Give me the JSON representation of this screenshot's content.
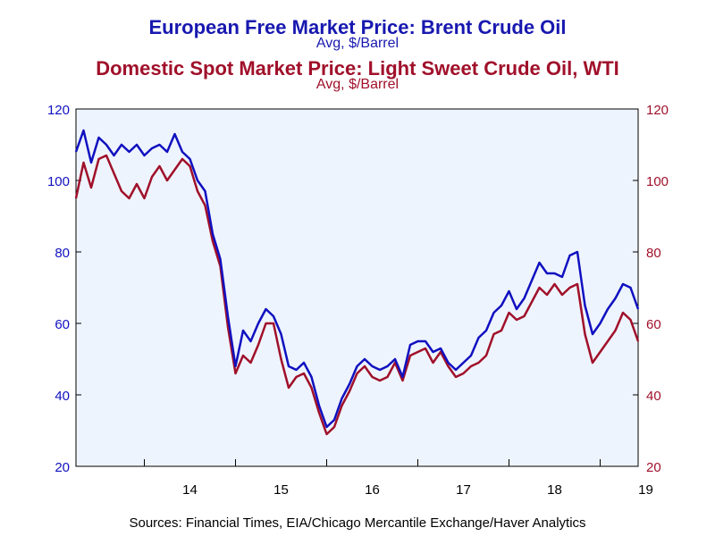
{
  "header": {
    "title_brent": "European Free Market Price: Brent Crude Oil",
    "subtitle_brent": "Avg, $/Barrel",
    "title_wti": "Domestic Spot Market Price: Light Sweet Crude Oil, WTI",
    "subtitle_wti": "Avg, $/Barrel"
  },
  "source": "Sources:  Financial Times, EIA/Chicago Mercantile Exchange/Haver Analytics",
  "colors": {
    "brent": "#1010c0",
    "wti": "#a0102a",
    "plot_bg": "#eef4fd"
  },
  "chart_data": {
    "type": "line",
    "x_ticks": [
      "14",
      "15",
      "16",
      "17",
      "18",
      "19"
    ],
    "y_ticks_left": [
      "20",
      "40",
      "60",
      "80",
      "100",
      "120"
    ],
    "y_ticks_right": [
      "20",
      "40",
      "60",
      "80",
      "100",
      "120"
    ],
    "ylim": [
      20,
      120
    ],
    "xlim": [
      "2013-04",
      "2019-06"
    ],
    "x": [
      "2013-04",
      "2013-05",
      "2013-06",
      "2013-07",
      "2013-08",
      "2013-09",
      "2013-10",
      "2013-11",
      "2013-12",
      "2014-01",
      "2014-02",
      "2014-03",
      "2014-04",
      "2014-05",
      "2014-06",
      "2014-07",
      "2014-08",
      "2014-09",
      "2014-10",
      "2014-11",
      "2014-12",
      "2015-01",
      "2015-02",
      "2015-03",
      "2015-04",
      "2015-05",
      "2015-06",
      "2015-07",
      "2015-08",
      "2015-09",
      "2015-10",
      "2015-11",
      "2015-12",
      "2016-01",
      "2016-02",
      "2016-03",
      "2016-04",
      "2016-05",
      "2016-06",
      "2016-07",
      "2016-08",
      "2016-09",
      "2016-10",
      "2016-11",
      "2016-12",
      "2017-01",
      "2017-02",
      "2017-03",
      "2017-04",
      "2017-05",
      "2017-06",
      "2017-07",
      "2017-08",
      "2017-09",
      "2017-10",
      "2017-11",
      "2017-12",
      "2018-01",
      "2018-02",
      "2018-03",
      "2018-04",
      "2018-05",
      "2018-06",
      "2018-07",
      "2018-08",
      "2018-09",
      "2018-10",
      "2018-11",
      "2018-12",
      "2019-01",
      "2019-02",
      "2019-03",
      "2019-04",
      "2019-05",
      "2019-06"
    ],
    "series": [
      {
        "values": [
          108,
          114,
          105,
          112,
          110,
          107,
          110,
          108,
          110,
          107,
          109,
          110,
          108,
          113,
          108,
          106,
          100,
          97,
          85,
          78,
          62,
          48,
          58,
          55,
          60,
          64,
          62,
          57,
          48,
          47,
          49,
          45,
          37,
          31,
          33,
          39,
          43,
          48,
          50,
          48,
          47,
          48,
          50,
          45,
          54,
          55,
          55,
          52,
          53,
          49,
          47,
          49,
          51,
          56,
          58,
          63,
          65,
          69,
          64,
          67,
          72,
          77,
          74,
          74,
          73,
          79,
          80,
          65,
          57,
          60,
          64,
          67,
          71,
          70,
          64
        ]
      },
      {
        "values": [
          95,
          105,
          98,
          106,
          107,
          102,
          97,
          95,
          99,
          95,
          101,
          104,
          100,
          103,
          106,
          104,
          97,
          93,
          83,
          76,
          59,
          46,
          51,
          49,
          54,
          60,
          60,
          50,
          42,
          45,
          46,
          42,
          35,
          29,
          31,
          37,
          41,
          46,
          48,
          45,
          44,
          45,
          49,
          44,
          51,
          52,
          53,
          49,
          52,
          48,
          45,
          46,
          48,
          49,
          51,
          57,
          58,
          63,
          61,
          62,
          66,
          70,
          68,
          71,
          68,
          70,
          71,
          57,
          49,
          52,
          55,
          58,
          63,
          61,
          55
        ]
      }
    ]
  }
}
